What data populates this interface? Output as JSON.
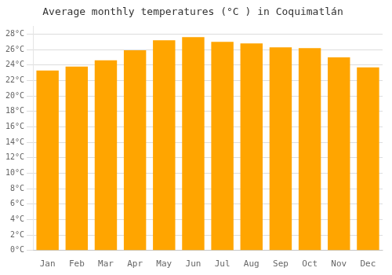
{
  "chart_data": {
    "type": "bar",
    "title": "Average monthly temperatures (°C ) in Coquimatlán",
    "categories": [
      "Jan",
      "Feb",
      "Mar",
      "Apr",
      "May",
      "Jun",
      "Jul",
      "Aug",
      "Sep",
      "Oct",
      "Nov",
      "Dec"
    ],
    "values": [
      23.3,
      23.8,
      24.6,
      25.9,
      27.2,
      27.6,
      27.0,
      26.8,
      26.3,
      26.2,
      25.0,
      23.7
    ],
    "color": "#FFA500",
    "ylim": [
      0,
      29
    ],
    "yticks": [
      {
        "value": 0,
        "label": "0°C"
      },
      {
        "value": 2,
        "label": "2°C"
      },
      {
        "value": 4,
        "label": "4°C"
      },
      {
        "value": 6,
        "label": "6°C"
      },
      {
        "value": 8,
        "label": "8°C"
      },
      {
        "value": 10,
        "label": "10°C"
      },
      {
        "value": 12,
        "label": "12°C"
      },
      {
        "value": 14,
        "label": "14°C"
      },
      {
        "value": 16,
        "label": "16°C"
      },
      {
        "value": 18,
        "label": "18°C"
      },
      {
        "value": 20,
        "label": "20°C"
      },
      {
        "value": 22,
        "label": "22°C"
      },
      {
        "value": 24,
        "label": "24°C"
      },
      {
        "value": 26,
        "label": "26°C"
      },
      {
        "value": 28,
        "label": "28°C"
      }
    ],
    "grid": true
  }
}
